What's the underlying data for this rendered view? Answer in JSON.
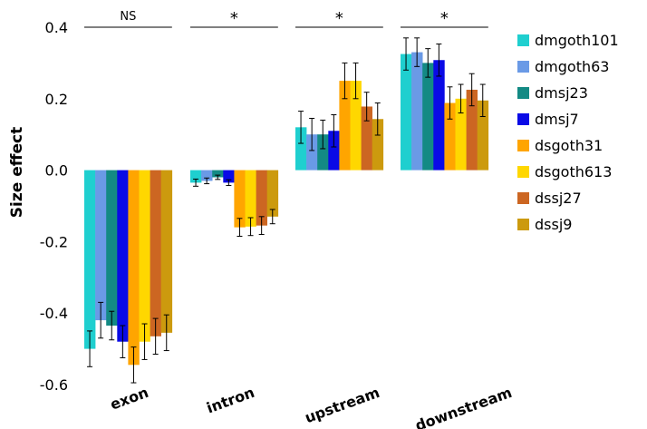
{
  "chart_data": {
    "type": "bar",
    "ylabel": "Size effect",
    "ylim": [
      -0.6,
      0.4
    ],
    "yticks": [
      "0.4",
      "0.2",
      "0.0",
      "-0.2",
      "-0.4",
      "-0.6"
    ],
    "yticks_values": [
      0.4,
      0.2,
      0.0,
      -0.2,
      -0.4,
      -0.6
    ],
    "grid": false,
    "legend_position": "right",
    "categories": [
      "exon",
      "intron",
      "upstream",
      "downstream"
    ],
    "significance": [
      "NS",
      "*",
      "*",
      "*"
    ],
    "series": [
      {
        "name": "dmgoth101",
        "color": "#1FCFCF",
        "values": [
          -0.5,
          -0.035,
          0.12,
          0.325
        ],
        "errors": [
          0.05,
          0.01,
          0.045,
          0.045
        ]
      },
      {
        "name": "dmgoth63",
        "color": "#6A9AE6",
        "values": [
          -0.42,
          -0.03,
          0.1,
          0.33
        ],
        "errors": [
          0.05,
          0.008,
          0.045,
          0.04
        ]
      },
      {
        "name": "dmsj23",
        "color": "#138A84",
        "values": [
          -0.435,
          -0.02,
          0.1,
          0.3
        ],
        "errors": [
          0.04,
          0.006,
          0.04,
          0.04
        ]
      },
      {
        "name": "dmsj7",
        "color": "#0A0AE6",
        "values": [
          -0.48,
          -0.035,
          0.11,
          0.308
        ],
        "errors": [
          0.045,
          0.008,
          0.045,
          0.045
        ]
      },
      {
        "name": "dsgoth31",
        "color": "#FFA500",
        "values": [
          -0.545,
          -0.16,
          0.25,
          0.188
        ],
        "errors": [
          0.05,
          0.025,
          0.05,
          0.045
        ]
      },
      {
        "name": "dsgoth613",
        "color": "#FFD700",
        "values": [
          -0.48,
          -0.158,
          0.25,
          0.2
        ],
        "errors": [
          0.05,
          0.025,
          0.05,
          0.04
        ]
      },
      {
        "name": "dssj27",
        "color": "#CC6622",
        "values": [
          -0.465,
          -0.155,
          0.178,
          0.225
        ],
        "errors": [
          0.05,
          0.025,
          0.04,
          0.045
        ]
      },
      {
        "name": "dssj9",
        "color": "#CC9A0E",
        "values": [
          -0.455,
          -0.13,
          0.143,
          0.195
        ],
        "errors": [
          0.05,
          0.02,
          0.045,
          0.045
        ]
      }
    ]
  }
}
